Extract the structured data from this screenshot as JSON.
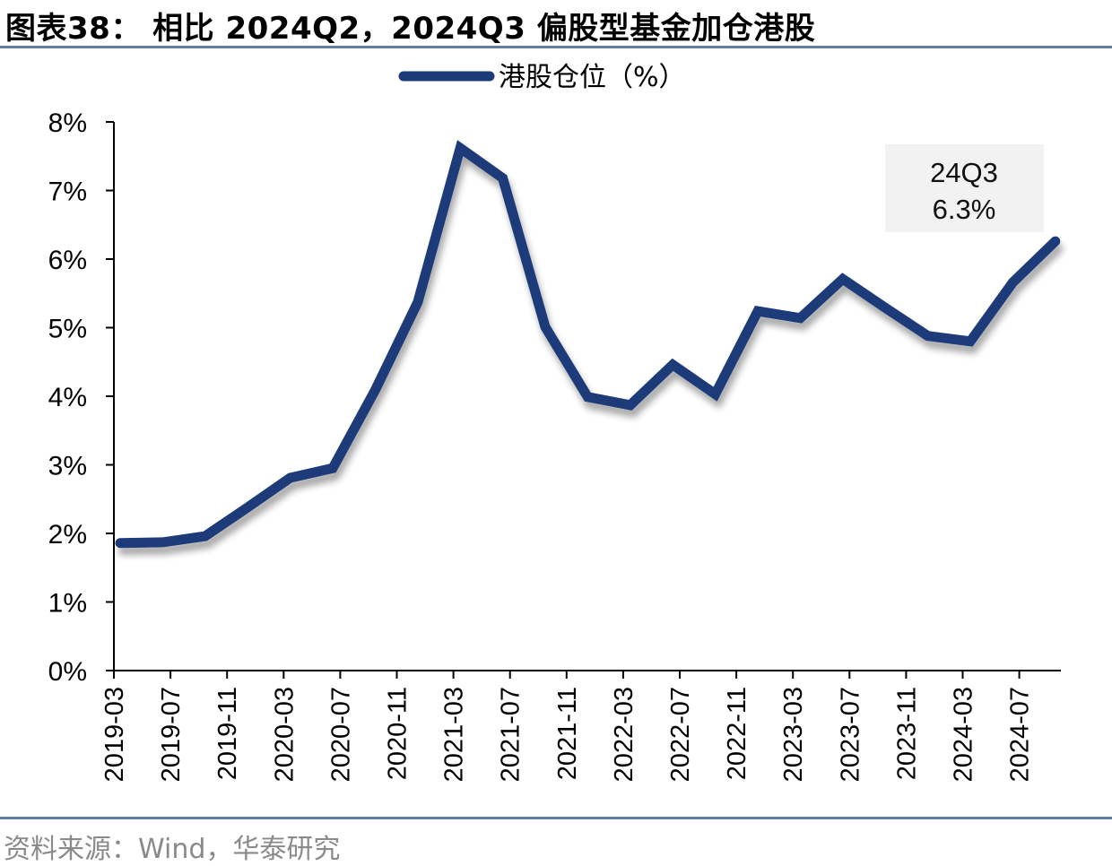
{
  "header": {
    "title": "图表38： 相比 2024Q2，2024Q3 偏股型基金加仓港股"
  },
  "footer": {
    "source": "资料来源：Wind，华泰研究"
  },
  "colors": {
    "line": "#1a3a78",
    "rule": "#5f7fa6",
    "annotation_bg": "#f2f2f2"
  },
  "chart_data": {
    "type": "line",
    "title": "相比 2024Q2，2024Q3 偏股型基金加仓港股",
    "xlabel": "",
    "ylabel": "",
    "ylim": [
      0,
      8
    ],
    "y_ticks": [
      "0%",
      "1%",
      "2%",
      "3%",
      "4%",
      "5%",
      "6%",
      "7%",
      "8%"
    ],
    "x_tick_labels": [
      "2019-03",
      "2019-07",
      "2019-11",
      "2020-03",
      "2020-07",
      "2020-11",
      "2021-03",
      "2021-07",
      "2021-11",
      "2022-03",
      "2022-07",
      "2022-11",
      "2023-03",
      "2023-07",
      "2023-11",
      "2024-03",
      "2024-07"
    ],
    "grid": false,
    "legend_position": "top",
    "x": [
      "2019Q1",
      "2019Q2",
      "2019Q3",
      "2019Q4",
      "2020Q1",
      "2020Q2",
      "2020Q3",
      "2020Q4",
      "2021Q1",
      "2021Q2",
      "2021Q3",
      "2021Q4",
      "2022Q1",
      "2022Q2",
      "2022Q3",
      "2022Q4",
      "2023Q1",
      "2023Q2",
      "2023Q3",
      "2023Q4",
      "2024Q1",
      "2024Q2",
      "2024Q3"
    ],
    "series": [
      {
        "name": "港股仓位（%）",
        "values": [
          1.86,
          1.87,
          1.96,
          2.38,
          2.81,
          2.95,
          4.09,
          5.37,
          7.62,
          7.18,
          5.01,
          3.99,
          3.87,
          4.46,
          4.03,
          5.24,
          5.14,
          5.71,
          5.29,
          4.88,
          4.8,
          5.66,
          6.26
        ]
      }
    ],
    "annotations": [
      {
        "label_line1": "24Q3",
        "label_line2": "6.3%",
        "point": "2024Q3"
      }
    ]
  }
}
